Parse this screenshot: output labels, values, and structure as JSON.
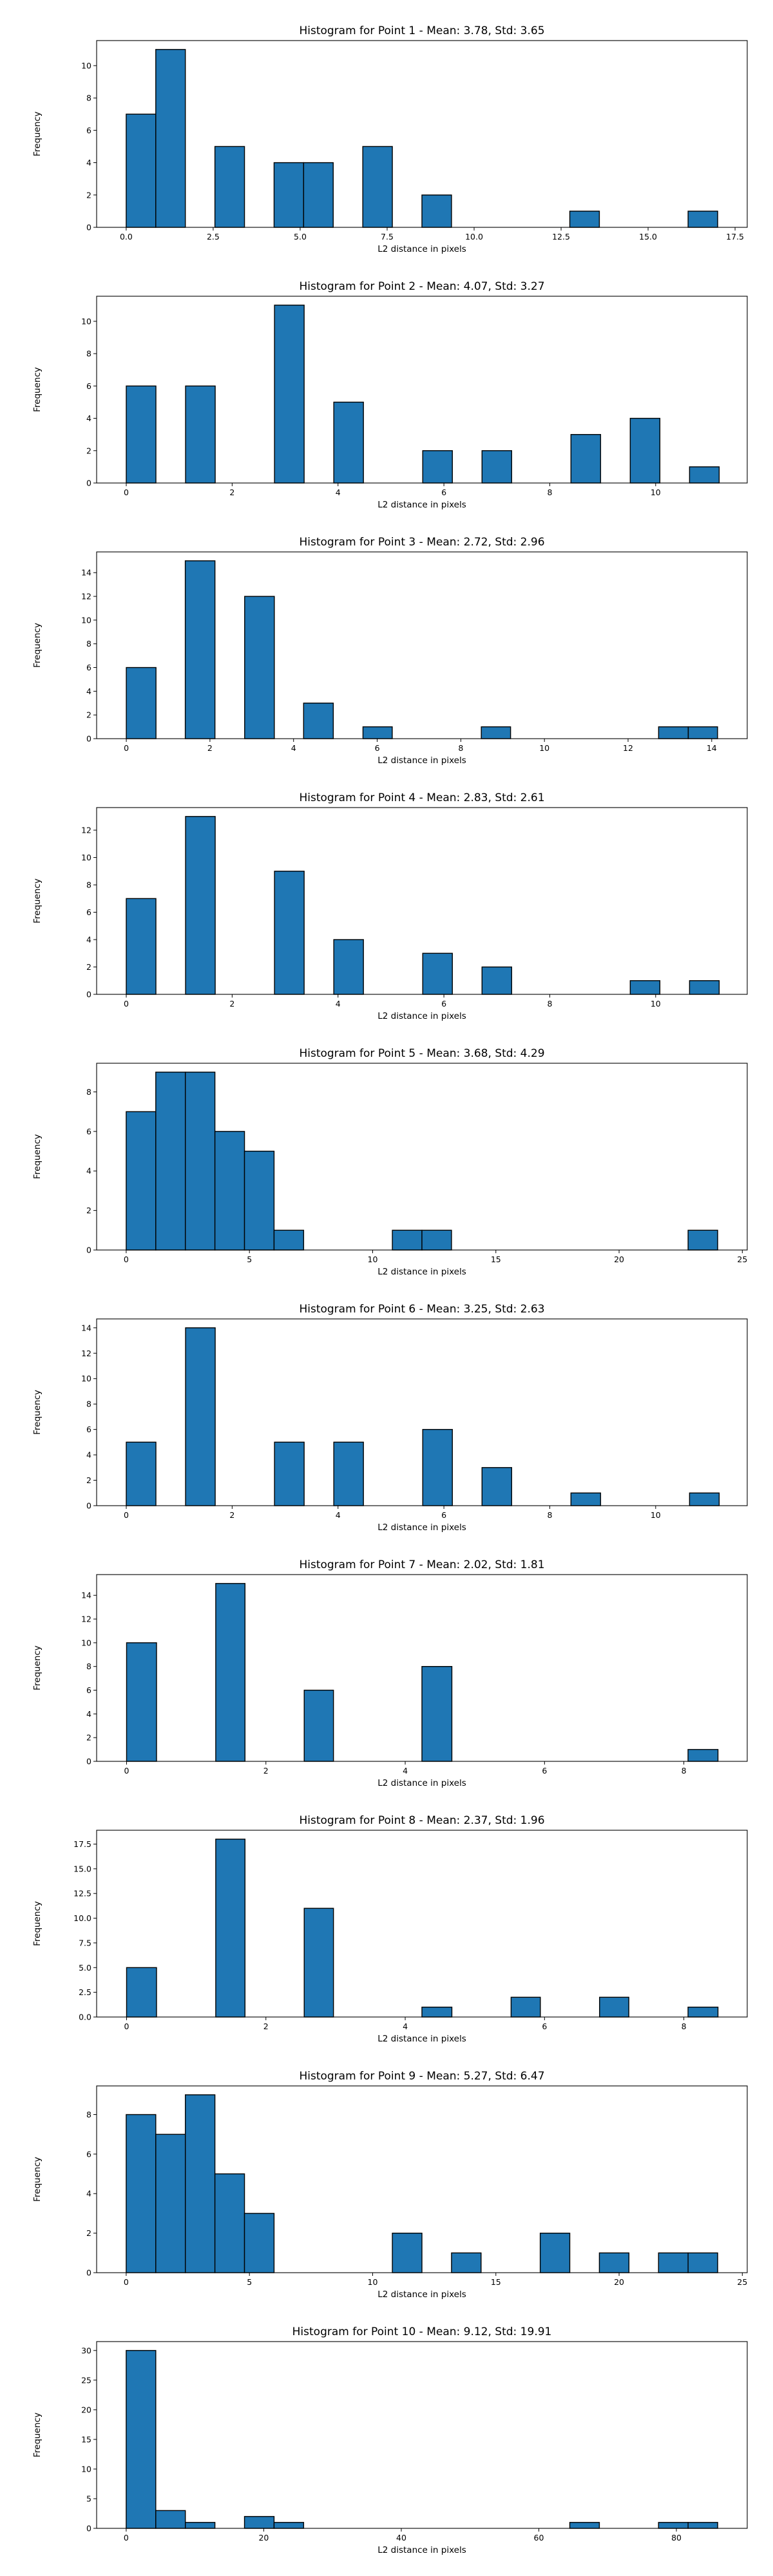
{
  "figure": {
    "background": "#ffffff"
  },
  "style": {
    "bar_fill": "#1f77b4",
    "bar_edge": "#000000",
    "axis_color": "#000000"
  },
  "chart_data": [
    {
      "type": "bar",
      "title": "Histogram for Point 1 - Mean: 3.78, Std: 3.65",
      "xlabel": "L2 distance in pixels",
      "ylabel": "Frequency",
      "xlim": [
        -0.85,
        17.85
      ],
      "ylim": [
        0,
        11.55
      ],
      "xticks": [
        0,
        2.5,
        5,
        7.5,
        10,
        12.5,
        15,
        17.5
      ],
      "xtick_labels": [
        "0.0",
        "2.5",
        "5.0",
        "7.5",
        "10.0",
        "12.5",
        "15.0",
        "17.5"
      ],
      "yticks": [
        0,
        2,
        4,
        6,
        8,
        10
      ],
      "ytick_labels": [
        "0",
        "2",
        "4",
        "6",
        "8",
        "10"
      ],
      "bars": [
        {
          "x0": 0.0,
          "x1": 0.85,
          "value": 7
        },
        {
          "x0": 0.85,
          "x1": 1.7,
          "value": 11
        },
        {
          "x0": 2.55,
          "x1": 3.4,
          "value": 5
        },
        {
          "x0": 4.25,
          "x1": 5.1,
          "value": 4
        },
        {
          "x0": 5.1,
          "x1": 5.95,
          "value": 4
        },
        {
          "x0": 6.8,
          "x1": 7.65,
          "value": 5
        },
        {
          "x0": 8.5,
          "x1": 9.35,
          "value": 2
        },
        {
          "x0": 12.75,
          "x1": 13.6,
          "value": 1
        },
        {
          "x0": 16.15,
          "x1": 17.0,
          "value": 1
        }
      ]
    },
    {
      "type": "bar",
      "title": "Histogram for Point 2 - Mean: 4.07, Std: 3.27",
      "xlabel": "L2 distance in pixels",
      "ylabel": "Frequency",
      "xlim": [
        -0.56,
        11.73
      ],
      "ylim": [
        0,
        11.55
      ],
      "xticks": [
        0,
        2,
        4,
        6,
        8,
        10
      ],
      "xtick_labels": [
        "0",
        "2",
        "4",
        "6",
        "8",
        "10"
      ],
      "yticks": [
        0,
        2,
        4,
        6,
        8,
        10
      ],
      "ytick_labels": [
        "0",
        "2",
        "4",
        "6",
        "8",
        "10"
      ],
      "bars": [
        {
          "x0": 0.0,
          "x1": 0.56,
          "value": 6
        },
        {
          "x0": 1.12,
          "x1": 1.68,
          "value": 6
        },
        {
          "x0": 2.8,
          "x1": 3.36,
          "value": 11
        },
        {
          "x0": 3.92,
          "x1": 4.48,
          "value": 5
        },
        {
          "x0": 5.6,
          "x1": 6.16,
          "value": 2
        },
        {
          "x0": 6.72,
          "x1": 7.28,
          "value": 2
        },
        {
          "x0": 8.4,
          "x1": 8.96,
          "value": 3
        },
        {
          "x0": 9.52,
          "x1": 10.08,
          "value": 4
        },
        {
          "x0": 10.64,
          "x1": 11.2,
          "value": 1
        }
      ]
    },
    {
      "type": "bar",
      "title": "Histogram for Point 3 - Mean: 2.72, Std: 2.96",
      "xlabel": "L2 distance in pixels",
      "ylabel": "Frequency",
      "xlim": [
        -0.71,
        14.85
      ],
      "ylim": [
        0,
        15.75
      ],
      "xticks": [
        0,
        2,
        4,
        6,
        8,
        10,
        12,
        14
      ],
      "xtick_labels": [
        "0",
        "2",
        "4",
        "6",
        "8",
        "10",
        "12",
        "14"
      ],
      "yticks": [
        0,
        2,
        4,
        6,
        8,
        10,
        12,
        14
      ],
      "ytick_labels": [
        "0",
        "2",
        "4",
        "6",
        "8",
        "10",
        "12",
        "14"
      ],
      "bars": [
        {
          "x0": 0.0,
          "x1": 0.71,
          "value": 6
        },
        {
          "x0": 1.41,
          "x1": 2.12,
          "value": 15
        },
        {
          "x0": 2.83,
          "x1": 3.54,
          "value": 12
        },
        {
          "x0": 4.24,
          "x1": 4.95,
          "value": 3
        },
        {
          "x0": 5.66,
          "x1": 6.36,
          "value": 1
        },
        {
          "x0": 8.49,
          "x1": 9.19,
          "value": 1
        },
        {
          "x0": 12.73,
          "x1": 13.44,
          "value": 1
        },
        {
          "x0": 13.44,
          "x1": 14.14,
          "value": 1
        }
      ]
    },
    {
      "type": "bar",
      "title": "Histogram for Point 4 - Mean: 2.83, Std: 2.61",
      "xlabel": "L2 distance in pixels",
      "ylabel": "Frequency",
      "xlim": [
        -0.56,
        11.73
      ],
      "ylim": [
        0,
        13.65
      ],
      "xticks": [
        0,
        2,
        4,
        6,
        8,
        10
      ],
      "xtick_labels": [
        "0",
        "2",
        "4",
        "6",
        "8",
        "10"
      ],
      "yticks": [
        0,
        2,
        4,
        6,
        8,
        10,
        12
      ],
      "ytick_labels": [
        "0",
        "2",
        "4",
        "6",
        "8",
        "10",
        "12"
      ],
      "bars": [
        {
          "x0": 0.0,
          "x1": 0.56,
          "value": 7
        },
        {
          "x0": 1.12,
          "x1": 1.68,
          "value": 13
        },
        {
          "x0": 2.8,
          "x1": 3.36,
          "value": 9
        },
        {
          "x0": 3.92,
          "x1": 4.48,
          "value": 4
        },
        {
          "x0": 5.6,
          "x1": 6.16,
          "value": 3
        },
        {
          "x0": 6.72,
          "x1": 7.28,
          "value": 2
        },
        {
          "x0": 9.52,
          "x1": 10.08,
          "value": 1
        },
        {
          "x0": 10.64,
          "x1": 11.2,
          "value": 1
        }
      ]
    },
    {
      "type": "bar",
      "title": "Histogram for Point 5 - Mean: 3.68, Std: 4.29",
      "xlabel": "L2 distance in pixels",
      "ylabel": "Frequency",
      "xlim": [
        -1.2,
        25.2
      ],
      "ylim": [
        0,
        9.45
      ],
      "xticks": [
        0,
        5,
        10,
        15,
        20,
        25
      ],
      "xtick_labels": [
        "0",
        "5",
        "10",
        "15",
        "20",
        "25"
      ],
      "yticks": [
        0,
        2,
        4,
        6,
        8
      ],
      "ytick_labels": [
        "0",
        "2",
        "4",
        "6",
        "8"
      ],
      "bars": [
        {
          "x0": 0.0,
          "x1": 1.2,
          "value": 7
        },
        {
          "x0": 1.2,
          "x1": 2.4,
          "value": 9
        },
        {
          "x0": 2.4,
          "x1": 3.6,
          "value": 9
        },
        {
          "x0": 3.6,
          "x1": 4.8,
          "value": 6
        },
        {
          "x0": 4.8,
          "x1": 6.0,
          "value": 5
        },
        {
          "x0": 6.0,
          "x1": 7.2,
          "value": 1
        },
        {
          "x0": 10.8,
          "x1": 12.0,
          "value": 1
        },
        {
          "x0": 12.0,
          "x1": 13.2,
          "value": 1
        },
        {
          "x0": 22.8,
          "x1": 24.0,
          "value": 1
        }
      ]
    },
    {
      "type": "bar",
      "title": "Histogram for Point 6 - Mean: 3.25, Std: 2.63",
      "xlabel": "L2 distance in pixels",
      "ylabel": "Frequency",
      "xlim": [
        -0.56,
        11.73
      ],
      "ylim": [
        0,
        14.7
      ],
      "xticks": [
        0,
        2,
        4,
        6,
        8,
        10
      ],
      "xtick_labels": [
        "0",
        "2",
        "4",
        "6",
        "8",
        "10"
      ],
      "yticks": [
        0,
        2,
        4,
        6,
        8,
        10,
        12,
        14
      ],
      "ytick_labels": [
        "0",
        "2",
        "4",
        "6",
        "8",
        "10",
        "12",
        "14"
      ],
      "bars": [
        {
          "x0": 0.0,
          "x1": 0.56,
          "value": 5
        },
        {
          "x0": 1.12,
          "x1": 1.68,
          "value": 14
        },
        {
          "x0": 2.8,
          "x1": 3.36,
          "value": 5
        },
        {
          "x0": 3.92,
          "x1": 4.48,
          "value": 5
        },
        {
          "x0": 5.6,
          "x1": 6.16,
          "value": 6
        },
        {
          "x0": 6.72,
          "x1": 7.28,
          "value": 3
        },
        {
          "x0": 8.4,
          "x1": 8.96,
          "value": 1
        },
        {
          "x0": 10.64,
          "x1": 11.2,
          "value": 1
        }
      ]
    },
    {
      "type": "bar",
      "title": "Histogram for Point 7 - Mean: 2.02, Std: 1.81",
      "xlabel": "L2 distance in pixels",
      "ylabel": "Frequency",
      "xlim": [
        -0.43,
        8.91
      ],
      "ylim": [
        0,
        15.75
      ],
      "xticks": [
        0,
        2,
        4,
        6,
        8
      ],
      "xtick_labels": [
        "0",
        "2",
        "4",
        "6",
        "8"
      ],
      "yticks": [
        0,
        2,
        4,
        6,
        8,
        10,
        12,
        14
      ],
      "ytick_labels": [
        "0",
        "2",
        "4",
        "6",
        "8",
        "10",
        "12",
        "14"
      ],
      "bars": [
        {
          "x0": 0.0,
          "x1": 0.43,
          "value": 10
        },
        {
          "x0": 1.28,
          "x1": 1.7,
          "value": 15
        },
        {
          "x0": 2.55,
          "x1": 2.97,
          "value": 6
        },
        {
          "x0": 4.24,
          "x1": 4.67,
          "value": 8
        },
        {
          "x0": 8.06,
          "x1": 8.49,
          "value": 1
        }
      ]
    },
    {
      "type": "bar",
      "title": "Histogram for Point 8 - Mean: 2.37, Std: 1.96",
      "xlabel": "L2 distance in pixels",
      "ylabel": "Frequency",
      "xlim": [
        -0.43,
        8.91
      ],
      "ylim": [
        0,
        18.9
      ],
      "xticks": [
        0,
        2,
        4,
        6,
        8
      ],
      "xtick_labels": [
        "0",
        "2",
        "4",
        "6",
        "8"
      ],
      "yticks": [
        0,
        2.5,
        5,
        7.5,
        10,
        12.5,
        15,
        17.5
      ],
      "ytick_labels": [
        "0.0",
        "2.5",
        "5.0",
        "7.5",
        "10.0",
        "12.5",
        "15.0",
        "17.5"
      ],
      "bars": [
        {
          "x0": 0.0,
          "x1": 0.43,
          "value": 5
        },
        {
          "x0": 1.28,
          "x1": 1.7,
          "value": 18
        },
        {
          "x0": 2.55,
          "x1": 2.97,
          "value": 11
        },
        {
          "x0": 4.24,
          "x1": 4.67,
          "value": 1
        },
        {
          "x0": 5.52,
          "x1": 5.94,
          "value": 2
        },
        {
          "x0": 6.79,
          "x1": 7.21,
          "value": 2
        },
        {
          "x0": 8.06,
          "x1": 8.49,
          "value": 1
        }
      ]
    },
    {
      "type": "bar",
      "title": "Histogram for Point 9 - Mean: 5.27, Std: 6.47",
      "xlabel": "L2 distance in pixels",
      "ylabel": "Frequency",
      "xlim": [
        -1.2,
        25.2
      ],
      "ylim": [
        0,
        9.45
      ],
      "xticks": [
        0,
        5,
        10,
        15,
        20,
        25
      ],
      "xtick_labels": [
        "0",
        "5",
        "10",
        "15",
        "20",
        "25"
      ],
      "yticks": [
        0,
        2,
        4,
        6,
        8
      ],
      "ytick_labels": [
        "0",
        "2",
        "4",
        "6",
        "8"
      ],
      "bars": [
        {
          "x0": 0.0,
          "x1": 1.2,
          "value": 8
        },
        {
          "x0": 1.2,
          "x1": 2.4,
          "value": 7
        },
        {
          "x0": 2.4,
          "x1": 3.6,
          "value": 9
        },
        {
          "x0": 3.6,
          "x1": 4.8,
          "value": 5
        },
        {
          "x0": 4.8,
          "x1": 6.0,
          "value": 3
        },
        {
          "x0": 10.8,
          "x1": 12.0,
          "value": 2
        },
        {
          "x0": 13.2,
          "x1": 14.4,
          "value": 1
        },
        {
          "x0": 16.8,
          "x1": 18.0,
          "value": 2
        },
        {
          "x0": 19.2,
          "x1": 20.4,
          "value": 1
        },
        {
          "x0": 21.6,
          "x1": 22.8,
          "value": 1
        },
        {
          "x0": 22.8,
          "x1": 24.0,
          "value": 1
        }
      ]
    },
    {
      "type": "bar",
      "title": "Histogram for Point 10 - Mean: 9.12, Std: 19.91",
      "xlabel": "L2 distance in pixels",
      "ylabel": "Frequency",
      "xlim": [
        -4.3,
        90.3
      ],
      "ylim": [
        0,
        31.5
      ],
      "xticks": [
        0,
        20,
        40,
        60,
        80
      ],
      "xtick_labels": [
        "0",
        "20",
        "40",
        "60",
        "80"
      ],
      "yticks": [
        0,
        5,
        10,
        15,
        20,
        25,
        30
      ],
      "ytick_labels": [
        "0",
        "5",
        "10",
        "15",
        "20",
        "25",
        "30"
      ],
      "bars": [
        {
          "x0": 0.0,
          "x1": 4.3,
          "value": 30
        },
        {
          "x0": 4.3,
          "x1": 8.6,
          "value": 3
        },
        {
          "x0": 8.6,
          "x1": 12.9,
          "value": 1
        },
        {
          "x0": 17.2,
          "x1": 21.5,
          "value": 2
        },
        {
          "x0": 21.5,
          "x1": 25.8,
          "value": 1
        },
        {
          "x0": 64.5,
          "x1": 68.8,
          "value": 1
        },
        {
          "x0": 77.4,
          "x1": 81.7,
          "value": 1
        },
        {
          "x0": 81.7,
          "x1": 86.0,
          "value": 1
        }
      ]
    }
  ]
}
